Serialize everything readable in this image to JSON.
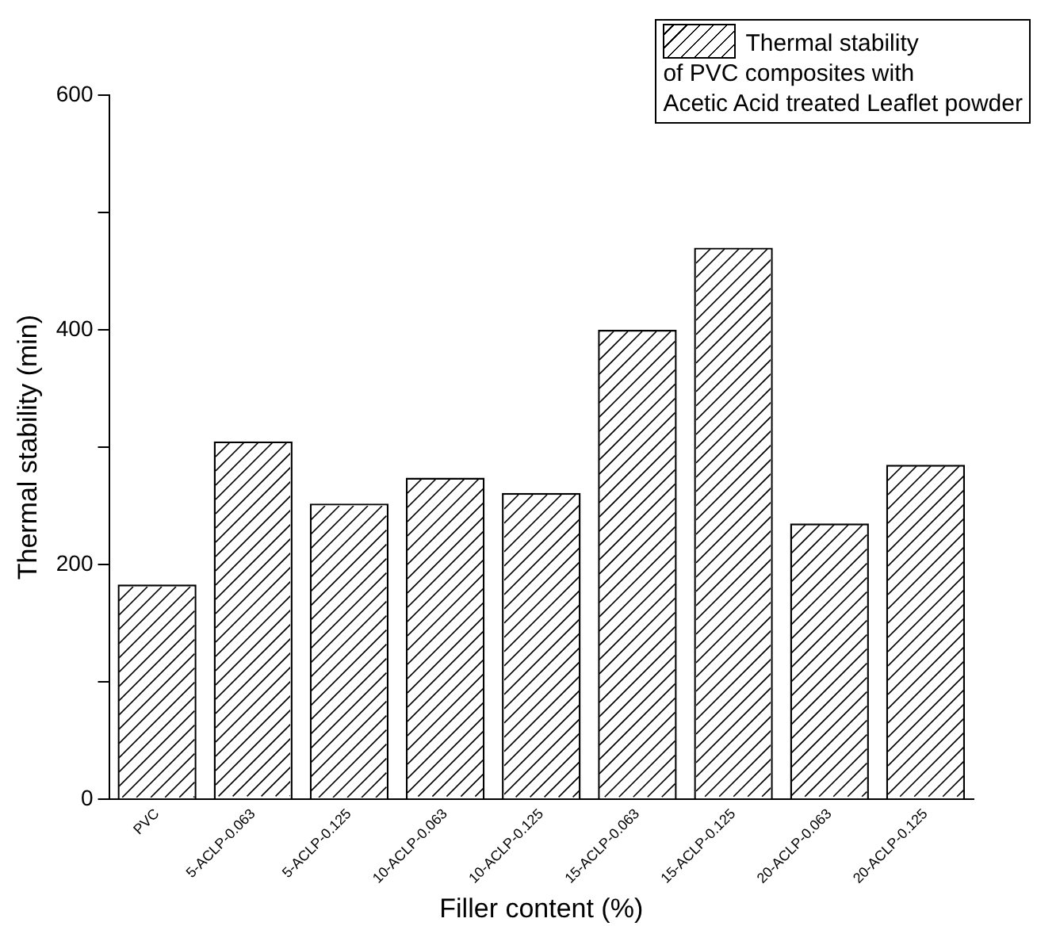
{
  "chart_data": {
    "type": "bar",
    "xlabel": "Filler content (%)",
    "ylabel": "Thermal stability (min)",
    "categories": [
      "PVC",
      "5-ACLP-0.063",
      "5-ACLP-0.125",
      "10-ACLP-0.063",
      "10-ACLP-0.125",
      "15-ACLP-0.063",
      "15-ACLP-0.125",
      "20-ACLP-0.063",
      "20-ACLP-0.125"
    ],
    "series": [
      {
        "name": "Thermal stability\nof PVC composites with\nAcetic Acid treated Leaflet powder",
        "color": "#ffffff",
        "values": [
          183,
          305,
          252,
          274,
          261,
          400,
          470,
          235,
          285
        ]
      }
    ],
    "ylim": [
      0,
      600
    ],
    "yticks": [
      0,
      {
        "value": 100,
        "label": null
      },
      200,
      {
        "value": 300,
        "label": null
      },
      400,
      {
        "value": 500,
        "label": null
      },
      600
    ],
    "grid": false,
    "legend": "top right"
  }
}
